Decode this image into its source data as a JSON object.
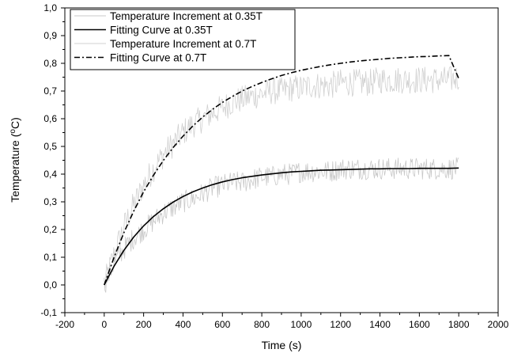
{
  "chart_data": {
    "type": "line",
    "xlabel": "Time (s)",
    "ylabel": "Temperature (°C)",
    "xlim": [
      -200,
      2000
    ],
    "ylim": [
      -0.1,
      1.0
    ],
    "x_ticks": [
      "-200",
      "0",
      "200",
      "400",
      "600",
      "800",
      "1000",
      "1200",
      "1400",
      "1600",
      "1800",
      "2000"
    ],
    "y_ticks": [
      "-0,1",
      "0,0",
      "0,1",
      "0,2",
      "0,3",
      "0,4",
      "0,5",
      "0,6",
      "0,7",
      "0,8",
      "0,9",
      "1,0"
    ],
    "grid": false,
    "legend_position": "top-left",
    "series": [
      {
        "name": "Temperature Increment at 0.35T",
        "style": "noisy-gray",
        "color": "#c8c8c8",
        "x": [
          0,
          50,
          100,
          150,
          200,
          250,
          300,
          350,
          400,
          450,
          500,
          550,
          600,
          650,
          700,
          750,
          800,
          850,
          900,
          950,
          1000,
          1050,
          1100,
          1150,
          1200,
          1250,
          1300,
          1350,
          1400,
          1450,
          1500,
          1550,
          1600,
          1650,
          1700,
          1750,
          1800
        ],
        "y": [
          0.0,
          0.08,
          0.13,
          0.17,
          0.2,
          0.23,
          0.26,
          0.28,
          0.3,
          0.31,
          0.33,
          0.35,
          0.36,
          0.37,
          0.37,
          0.38,
          0.39,
          0.39,
          0.4,
          0.4,
          0.41,
          0.41,
          0.41,
          0.41,
          0.42,
          0.42,
          0.42,
          0.42,
          0.42,
          0.42,
          0.42,
          0.42,
          0.42,
          0.42,
          0.42,
          0.42,
          0.42
        ]
      },
      {
        "name": "Fitting Curve at 0.35T",
        "style": "solid",
        "color": "#000000",
        "x": [
          0,
          50,
          100,
          150,
          200,
          250,
          300,
          350,
          400,
          450,
          500,
          550,
          600,
          650,
          700,
          750,
          800,
          850,
          900,
          950,
          1000,
          1050,
          1100,
          1150,
          1200,
          1250,
          1300,
          1350,
          1400,
          1450,
          1500,
          1550,
          1600,
          1650,
          1700,
          1750,
          1800
        ],
        "y": [
          0.0,
          0.068,
          0.125,
          0.173,
          0.213,
          0.247,
          0.275,
          0.299,
          0.319,
          0.336,
          0.35,
          0.362,
          0.372,
          0.38,
          0.387,
          0.392,
          0.397,
          0.401,
          0.405,
          0.408,
          0.41,
          0.412,
          0.414,
          0.415,
          0.416,
          0.417,
          0.418,
          0.419,
          0.419,
          0.42,
          0.42,
          0.42,
          0.421,
          0.421,
          0.421,
          0.421,
          0.422
        ]
      },
      {
        "name": "Temperature Increment at 0.7T",
        "style": "noisy-gray",
        "color": "#d0d0d0",
        "x": [
          0,
          50,
          100,
          150,
          200,
          250,
          300,
          350,
          400,
          450,
          500,
          550,
          600,
          650,
          700,
          750,
          800,
          850,
          900,
          950,
          1000,
          1050,
          1100,
          1150,
          1200,
          1250,
          1300,
          1350,
          1400,
          1450,
          1500,
          1550,
          1600,
          1650,
          1700,
          1750,
          1800
        ],
        "y": [
          0.0,
          0.11,
          0.21,
          0.29,
          0.36,
          0.42,
          0.47,
          0.51,
          0.55,
          0.58,
          0.6,
          0.62,
          0.64,
          0.66,
          0.67,
          0.68,
          0.69,
          0.7,
          0.7,
          0.71,
          0.71,
          0.72,
          0.72,
          0.72,
          0.73,
          0.73,
          0.73,
          0.73,
          0.74,
          0.74,
          0.74,
          0.74,
          0.74,
          0.74,
          0.74,
          0.74,
          0.75
        ]
      },
      {
        "name": "Fitting Curve at 0.7T",
        "style": "dash-dot",
        "color": "#000000",
        "x": [
          0,
          50,
          100,
          150,
          200,
          250,
          300,
          350,
          400,
          450,
          500,
          550,
          600,
          650,
          700,
          750,
          800,
          850,
          900,
          950,
          1000,
          1050,
          1100,
          1150,
          1200,
          1250,
          1300,
          1350,
          1400,
          1450,
          1500,
          1550,
          1600,
          1650,
          1700,
          1750,
          1800
        ],
        "y": [
          0.0,
          0.1,
          0.189,
          0.267,
          0.336,
          0.396,
          0.449,
          0.496,
          0.537,
          0.574,
          0.606,
          0.634,
          0.659,
          0.68,
          0.7,
          0.716,
          0.731,
          0.744,
          0.756,
          0.766,
          0.775,
          0.782,
          0.789,
          0.795,
          0.8,
          0.805,
          0.809,
          0.812,
          0.815,
          0.818,
          0.82,
          0.822,
          0.824,
          0.825,
          0.827,
          0.828,
          0.745
        ]
      }
    ]
  }
}
